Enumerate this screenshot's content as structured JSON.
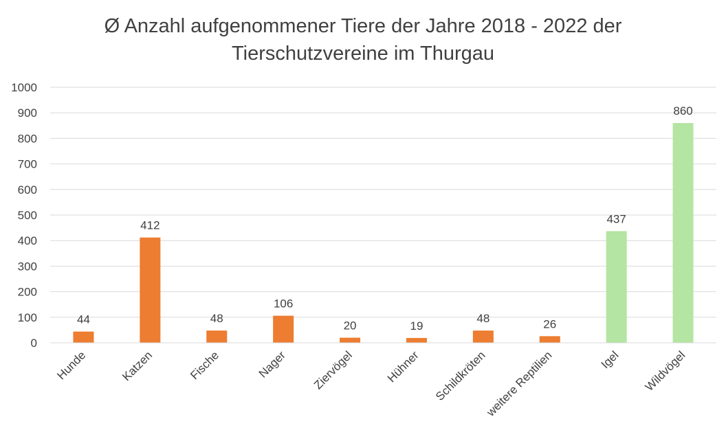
{
  "chart_data": {
    "type": "bar",
    "title_line1": "Ø Anzahl aufgenommener Tiere der Jahre 2018 - 2022 der",
    "title_line2": "Tierschutzvereine im Thurgau",
    "categories": [
      "Hunde",
      "Katzen",
      "Fische",
      "Nager",
      "Ziervögel",
      "Hühner",
      "Schildkröten",
      "weitere Reptilien",
      "Igel",
      "Wildvögel"
    ],
    "values": [
      44,
      412,
      48,
      106,
      20,
      19,
      48,
      26,
      437,
      860
    ],
    "bar_colors": [
      "#ED7D31",
      "#ED7D31",
      "#ED7D31",
      "#ED7D31",
      "#ED7D31",
      "#ED7D31",
      "#ED7D31",
      "#ED7D31",
      "#B4E5A2",
      "#B4E5A2"
    ],
    "ylim": [
      0,
      1000
    ],
    "yticks": [
      0,
      100,
      200,
      300,
      400,
      500,
      600,
      700,
      800,
      900,
      1000
    ],
    "grid": true,
    "data_labels": true,
    "xlabel": "",
    "ylabel": ""
  }
}
